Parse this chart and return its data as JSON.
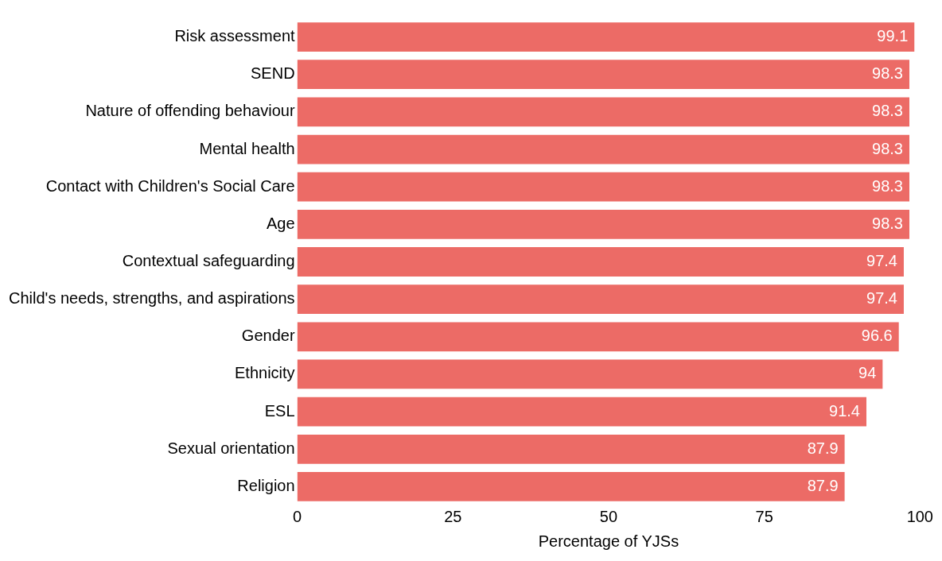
{
  "chart_data": {
    "type": "bar",
    "orientation": "horizontal",
    "categories": [
      "Risk assessment",
      "SEND",
      "Nature of offending behaviour",
      "Mental health",
      "Contact with Children's Social Care",
      "Age",
      "Contextual safeguarding",
      "Child's needs, strengths, and aspirations",
      "Gender",
      "Ethnicity",
      "ESL",
      "Sexual orientation",
      "Religion"
    ],
    "values": [
      99.1,
      98.3,
      98.3,
      98.3,
      98.3,
      98.3,
      97.4,
      97.4,
      96.6,
      94,
      91.4,
      87.9,
      87.9
    ],
    "color": "#ec6b66",
    "xlim": [
      0,
      100
    ],
    "xticks": [
      0,
      25,
      50,
      75,
      100
    ],
    "xlabel": "Percentage of YJSs",
    "data_labels": true
  }
}
